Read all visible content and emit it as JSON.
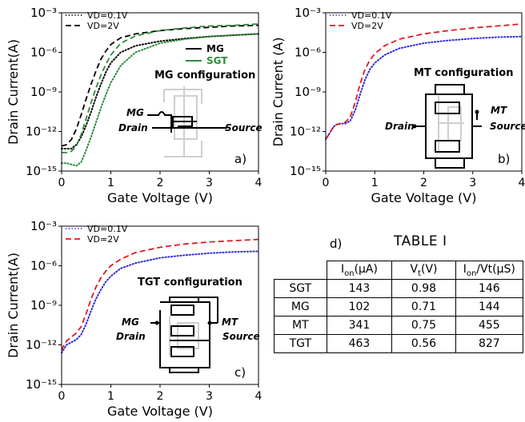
{
  "colors": {
    "black": "#000000",
    "green": "#2e8b3a",
    "blue": "#2b2bd9",
    "red": "#e0191f",
    "schematic": "#cfcfcf"
  },
  "chart_data": [
    {
      "panel": "a)",
      "type": "line",
      "xlabel": "Gate Voltage (V)",
      "ylabel": "Drain Current(A)",
      "xlim": [
        0,
        4
      ],
      "ylim": [
        1e-15,
        0.001
      ],
      "yscale": "log",
      "xticks": [
        "0",
        "1",
        "2",
        "3",
        "4"
      ],
      "yticks": [
        "10⁻¹⁵",
        "10⁻¹²",
        "10⁻⁹",
        "10⁻⁶",
        "10⁻³"
      ],
      "annotation": "MG configuration",
      "legend_linestyle": [
        {
          "label": "VD=0.1V",
          "style": "dotted"
        },
        {
          "label": "VD=2V",
          "style": "dashed"
        }
      ],
      "legend_device": [
        {
          "label": "MG",
          "color": "#000000"
        },
        {
          "label": "SGT",
          "color": "#2e8b3a"
        }
      ],
      "series": [
        {
          "device": "MG",
          "vd": "0.1V",
          "style": "dotted",
          "color": "#000000",
          "x": [
            0,
            0.1,
            0.2,
            0.3,
            0.4,
            0.5,
            0.6,
            0.7,
            0.8,
            0.9,
            1.0,
            1.2,
            1.5,
            2.0,
            2.5,
            3.0,
            3.5,
            4.0
          ],
          "y": [
            -13.3,
            -13.3,
            -13.3,
            -13.0,
            -12.4,
            -11.5,
            -10.5,
            -9.4,
            -8.4,
            -7.5,
            -6.8,
            -6.0,
            -5.5,
            -5.15,
            -4.95,
            -4.8,
            -4.7,
            -4.6
          ]
        },
        {
          "device": "MG",
          "vd": "2V",
          "style": "dashed",
          "color": "#000000",
          "x": [
            0,
            0.1,
            0.2,
            0.3,
            0.4,
            0.5,
            0.6,
            0.7,
            0.8,
            0.9,
            1.0,
            1.2,
            1.5,
            2.0,
            2.5,
            3.0,
            3.5,
            4.0
          ],
          "y": [
            -13.1,
            -13.0,
            -12.6,
            -11.8,
            -10.7,
            -9.5,
            -8.4,
            -7.4,
            -6.5,
            -5.9,
            -5.4,
            -4.9,
            -4.6,
            -4.35,
            -4.2,
            -4.1,
            -4.0,
            -3.95
          ]
        },
        {
          "device": "SGT",
          "vd": "0.1V",
          "style": "dotted",
          "color": "#2e8b3a",
          "x": [
            0,
            0.1,
            0.2,
            0.3,
            0.4,
            0.5,
            0.6,
            0.7,
            0.8,
            0.9,
            1.0,
            1.2,
            1.5,
            2.0,
            2.5,
            3.0,
            3.5,
            4.0
          ],
          "y": [
            -14.4,
            -14.4,
            -14.5,
            -14.6,
            -14.3,
            -13.4,
            -12.4,
            -11.3,
            -10.2,
            -9.2,
            -8.3,
            -7.0,
            -6.0,
            -5.3,
            -5.0,
            -4.8,
            -4.7,
            -4.6
          ]
        },
        {
          "device": "SGT",
          "vd": "2V",
          "style": "dashed",
          "color": "#2e8b3a",
          "x": [
            0,
            0.1,
            0.2,
            0.3,
            0.4,
            0.5,
            0.6,
            0.7,
            0.8,
            0.9,
            1.0,
            1.2,
            1.5,
            2.0,
            2.5,
            3.0,
            3.5,
            4.0
          ],
          "y": [
            -13.6,
            -13.6,
            -13.5,
            -13.1,
            -12.2,
            -11.0,
            -9.8,
            -8.7,
            -7.7,
            -6.9,
            -6.2,
            -5.3,
            -4.75,
            -4.35,
            -4.15,
            -4.0,
            -3.95,
            -3.85
          ]
        }
      ]
    },
    {
      "panel": "b)",
      "type": "line",
      "xlabel": "Gate Voltage (V)",
      "ylabel": "Drain Current (A)",
      "xlim": [
        0,
        4
      ],
      "ylim": [
        1e-15,
        0.001
      ],
      "yscale": "log",
      "xticks": [
        "0",
        "1",
        "2",
        "3",
        "4"
      ],
      "yticks": [
        "10⁻¹⁵",
        "10⁻¹²",
        "10⁻⁹",
        "10⁻⁶",
        "10⁻³"
      ],
      "annotation": "MT configuration",
      "legend": [
        {
          "label": "VD=0.1V",
          "style": "dotted",
          "color": "#2b2bd9"
        },
        {
          "label": "VD=2V",
          "style": "dashed",
          "color": "#e0191f"
        }
      ],
      "series": [
        {
          "name": "VD=0.1V",
          "style": "dotted",
          "color": "#2b2bd9",
          "x": [
            0,
            0.05,
            0.1,
            0.15,
            0.2,
            0.3,
            0.4,
            0.5,
            0.6,
            0.7,
            0.8,
            0.9,
            1.0,
            1.2,
            1.5,
            2.0,
            2.5,
            3.0,
            3.5,
            4.0
          ],
          "y": [
            -12.6,
            -12.3,
            -12.0,
            -11.7,
            -11.5,
            -11.4,
            -11.4,
            -11.2,
            -10.4,
            -9.2,
            -8.1,
            -7.3,
            -6.8,
            -6.2,
            -5.7,
            -5.3,
            -5.1,
            -4.95,
            -4.85,
            -4.8
          ]
        },
        {
          "name": "VD=2V",
          "style": "dashed",
          "color": "#e0191f",
          "x": [
            0,
            0.05,
            0.1,
            0.15,
            0.2,
            0.3,
            0.4,
            0.5,
            0.6,
            0.7,
            0.8,
            0.9,
            1.0,
            1.2,
            1.5,
            2.0,
            2.5,
            3.0,
            3.5,
            4.0
          ],
          "y": [
            -12.6,
            -12.3,
            -12.0,
            -11.7,
            -11.5,
            -11.4,
            -11.3,
            -10.9,
            -9.8,
            -8.4,
            -7.3,
            -6.6,
            -6.1,
            -5.5,
            -5.0,
            -4.6,
            -4.35,
            -4.15,
            -4.0,
            -3.85
          ]
        }
      ]
    },
    {
      "panel": "c)",
      "type": "line",
      "xlabel": "Gate Voltage (V)",
      "ylabel": "Drain Current(A)",
      "xlim": [
        0,
        4
      ],
      "ylim": [
        1e-15,
        0.001
      ],
      "yscale": "log",
      "xticks": [
        "0",
        "1",
        "2",
        "3",
        "4"
      ],
      "yticks": [
        "10⁻¹⁵",
        "10⁻¹²",
        "10⁻⁹",
        "10⁻⁶",
        "10⁻³"
      ],
      "annotation": "TGT configuration",
      "legend": [
        {
          "label": "VD=0.1V",
          "style": "dotted",
          "color": "#2b2bd9"
        },
        {
          "label": "VD=2V",
          "style": "dashed",
          "color": "#e0191f"
        }
      ],
      "series": [
        {
          "name": "VD=0.1V",
          "style": "dotted",
          "color": "#2b2bd9",
          "x": [
            0,
            0.05,
            0.1,
            0.2,
            0.3,
            0.4,
            0.5,
            0.6,
            0.7,
            0.8,
            0.9,
            1.0,
            1.2,
            1.5,
            2.0,
            2.5,
            3.0,
            3.5,
            4.0
          ],
          "y": [
            -12.6,
            -12.3,
            -12.0,
            -11.8,
            -11.6,
            -11.2,
            -10.4,
            -9.4,
            -8.5,
            -7.8,
            -7.2,
            -6.8,
            -6.2,
            -5.8,
            -5.4,
            -5.2,
            -5.05,
            -4.95,
            -4.9
          ]
        },
        {
          "name": "VD=2V",
          "style": "dashed",
          "color": "#e0191f",
          "x": [
            0,
            0.05,
            0.1,
            0.2,
            0.3,
            0.4,
            0.5,
            0.6,
            0.7,
            0.8,
            0.9,
            1.0,
            1.2,
            1.5,
            2.0,
            2.5,
            3.0,
            3.5,
            4.0
          ],
          "y": [
            -12.4,
            -12.0,
            -11.7,
            -11.4,
            -11.1,
            -10.6,
            -9.6,
            -8.5,
            -7.6,
            -6.9,
            -6.4,
            -6.0,
            -5.5,
            -5.0,
            -4.6,
            -4.35,
            -4.2,
            -4.1,
            -4.0
          ]
        }
      ]
    }
  ],
  "schematics": {
    "mg": {
      "labels": [
        "MG",
        "Drain",
        "Source"
      ]
    },
    "mt": {
      "labels": [
        "MT",
        "Drain",
        "Source"
      ]
    },
    "tgt": {
      "labels": [
        "MG",
        "MT",
        "Drain",
        "Source"
      ]
    }
  },
  "table": {
    "letter": "d)",
    "title": "TABLE I",
    "headers": [
      {
        "main": "",
        "sub": "",
        "unit": ""
      },
      {
        "main": "I",
        "sub": "on",
        "unit": "(µA)"
      },
      {
        "main": "V",
        "sub": "t",
        "unit": "(V)"
      },
      {
        "main": "I",
        "sub": "on",
        "unit": "/Vt(µS)"
      }
    ],
    "rows": [
      [
        "SGT",
        "143",
        "0.98",
        "146"
      ],
      [
        "MG",
        "102",
        "0.71",
        "144"
      ],
      [
        "MT",
        "341",
        "0.75",
        "455"
      ],
      [
        "TGT",
        "463",
        "0.56",
        "827"
      ]
    ]
  }
}
